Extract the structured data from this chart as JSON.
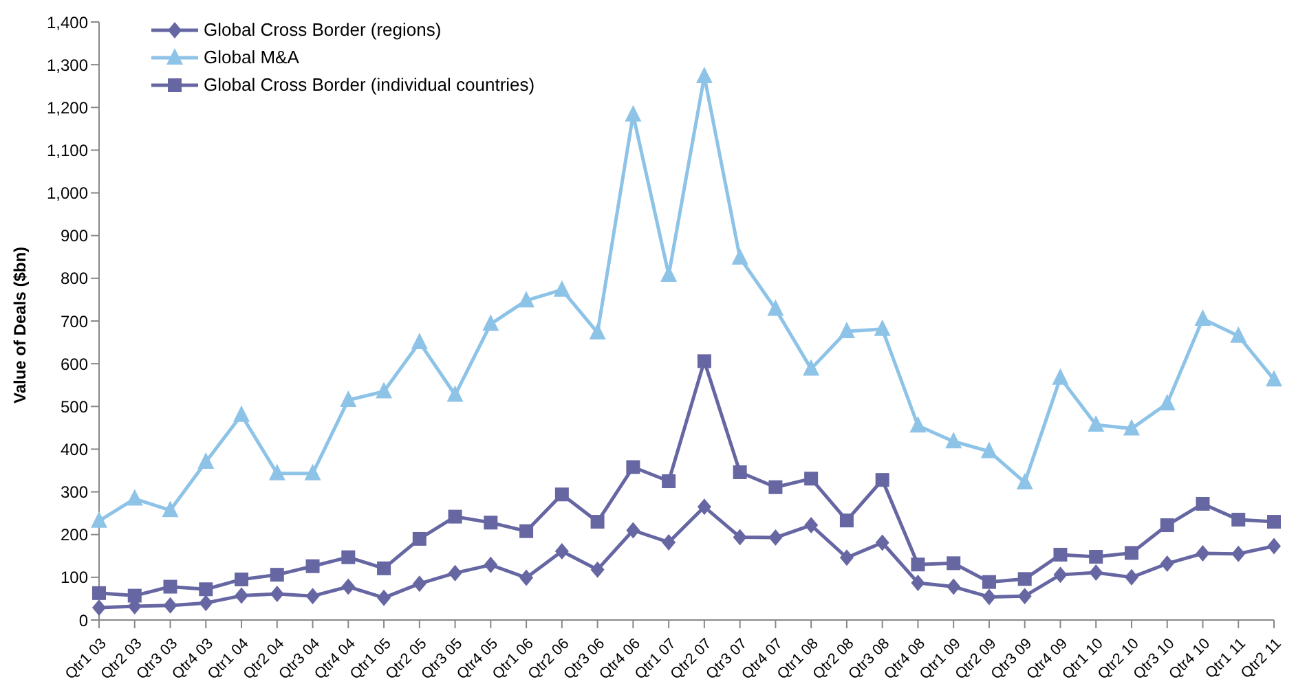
{
  "chart_data": {
    "type": "line",
    "ylabel": "Value of Deals ($bn)",
    "categories": [
      "Qtr1 03",
      "Qtr2 03",
      "Qtr3 03",
      "Qtr4 03",
      "Qtr1 04",
      "Qtr2 04",
      "Qtr3 04",
      "Qtr4 04",
      "Qtr1 05",
      "Qtr2 05",
      "Qtr3 05",
      "Qtr4 05",
      "Qtr1 06",
      "Qtr2 06",
      "Qtr3 06",
      "Qtr4 06",
      "Qtr1 07",
      "Qtr2 07",
      "Qtr3 07",
      "Qtr4 07",
      "Qtr1 08",
      "Qtr2 08",
      "Qtr3 08",
      "Qtr4 08",
      "Qtr1 09",
      "Qtr2 09",
      "Qtr3 09",
      "Qtr4 09",
      "Qtr1 10",
      "Qtr2 10",
      "Qtr3 10",
      "Qtr4 10",
      "Qtr1 11",
      "Qtr2 11"
    ],
    "series": [
      {
        "name": "Global Cross Border (regions)",
        "color": "#6666a3",
        "marker": "diamond",
        "values": [
          29,
          32,
          34,
          40,
          57,
          61,
          56,
          78,
          52,
          85,
          110,
          129,
          99,
          161,
          118,
          210,
          182,
          265,
          194,
          193,
          222,
          146,
          181,
          87,
          78,
          54,
          56,
          106,
          111,
          100,
          132,
          156,
          155,
          173
        ]
      },
      {
        "name": "Global M&A",
        "color": "#8ec3e8",
        "marker": "triangle",
        "values": [
          232,
          284,
          257,
          370,
          480,
          343,
          343,
          515,
          535,
          650,
          527,
          693,
          748,
          773,
          673,
          1183,
          808,
          1273,
          848,
          728,
          588,
          676,
          681,
          455,
          418,
          395,
          322,
          567,
          457,
          448,
          507,
          705,
          665,
          563
        ]
      },
      {
        "name": "Global Cross Border (individual countries)",
        "color": "#6666a3",
        "marker": "square",
        "values": [
          63,
          57,
          78,
          72,
          95,
          106,
          126,
          147,
          121,
          190,
          242,
          228,
          208,
          294,
          230,
          358,
          325,
          606,
          346,
          311,
          331,
          233,
          328,
          130,
          133,
          89,
          96,
          153,
          148,
          157,
          222,
          272,
          235,
          230
        ]
      }
    ],
    "ylim": [
      0,
      1400
    ],
    "yticks": [
      0,
      100,
      200,
      300,
      400,
      500,
      600,
      700,
      800,
      900,
      {
        "value": 1000,
        "label": "1,000"
      },
      {
        "value": 1100,
        "label": "1,100"
      },
      {
        "value": 1200,
        "label": "1,200"
      },
      {
        "value": 1300,
        "label": "1,300"
      },
      {
        "value": 1400,
        "label": "1,400"
      }
    ],
    "grid": false,
    "legend": "top left"
  }
}
